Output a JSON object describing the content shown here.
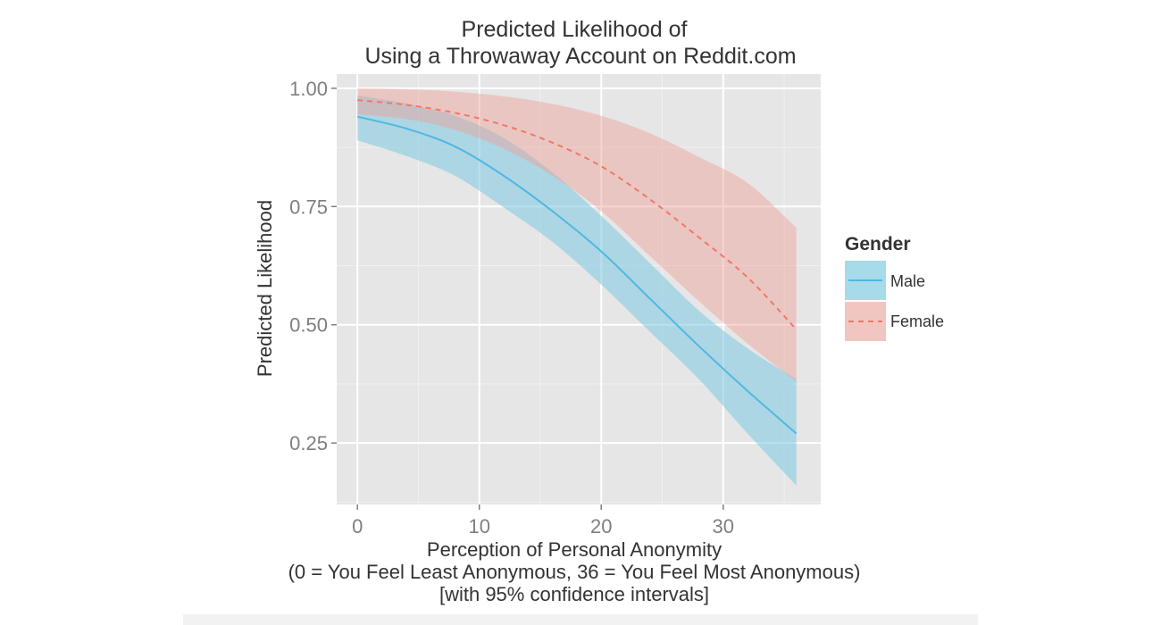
{
  "chart_data": {
    "type": "line",
    "title_lines": [
      "Predicted Likelihood of",
      "Using a Throwaway Account on Reddit.com"
    ],
    "xlabel_lines": [
      "Perception of Personal Anonymity",
      "(0 = You Feel Least Anonymous, 36 = You Feel Most Anonymous)",
      "[with 95% confidence intervals]"
    ],
    "ylabel": "Predicted Likelihood",
    "xlim": [
      -1.7,
      38
    ],
    "ylim": [
      0.12,
      1.03
    ],
    "x_ticks": [
      0,
      10,
      20,
      30
    ],
    "x_tick_labels": [
      "0",
      "10",
      "20",
      "30"
    ],
    "y_ticks": [
      0.25,
      0.5,
      0.75,
      1.0
    ],
    "y_tick_labels": [
      "0.25",
      "0.50",
      "0.75",
      "1.00"
    ],
    "grid": true,
    "legend": {
      "title": "Gender",
      "placement": "right"
    },
    "series": [
      {
        "name": "Male",
        "color": "#4fb8e3",
        "band_color": "#a6dbea",
        "line_style": "solid",
        "x": [
          0,
          4,
          8,
          12,
          16,
          20,
          24,
          28,
          32,
          36
        ],
        "y": [
          0.94,
          0.915,
          0.877,
          0.815,
          0.74,
          0.655,
          0.555,
          0.455,
          0.36,
          0.27
        ],
        "lower": [
          0.89,
          0.857,
          0.815,
          0.748,
          0.675,
          0.585,
          0.485,
          0.385,
          0.27,
          0.16
        ],
        "upper": [
          0.985,
          0.968,
          0.942,
          0.895,
          0.822,
          0.73,
          0.63,
          0.53,
          0.45,
          0.385
        ]
      },
      {
        "name": "Female",
        "color": "#f07867",
        "band_color": "#f1b9b4",
        "line_style": "dashed",
        "x": [
          0,
          4,
          8,
          12,
          16,
          20,
          24,
          28,
          32,
          36
        ],
        "y": [
          0.975,
          0.965,
          0.948,
          0.922,
          0.885,
          0.835,
          0.765,
          0.685,
          0.6,
          0.49
        ],
        "lower": [
          0.945,
          0.935,
          0.912,
          0.872,
          0.815,
          0.74,
          0.645,
          0.55,
          0.46,
          0.38
        ],
        "upper": [
          1.0,
          0.998,
          0.993,
          0.983,
          0.967,
          0.942,
          0.905,
          0.855,
          0.8,
          0.705
        ]
      }
    ]
  }
}
